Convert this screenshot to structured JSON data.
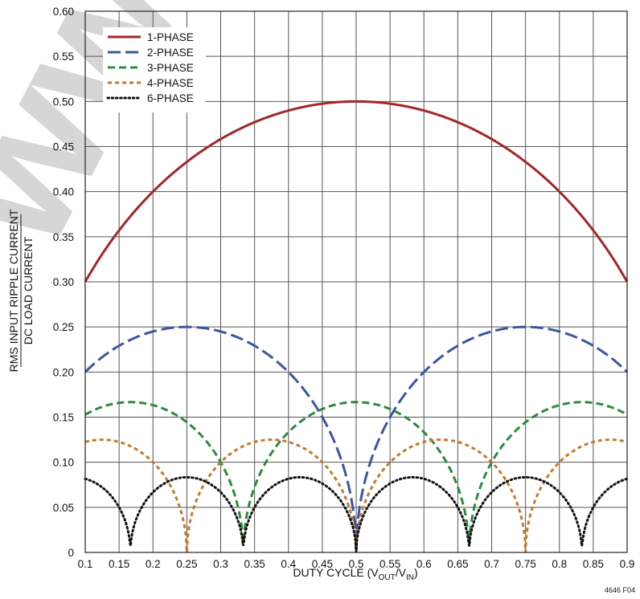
{
  "chart_data": {
    "type": "line",
    "title": "",
    "xlabel_parts": {
      "main": "DUTY CYCLE (V",
      "sub1": "OUT",
      "mid": "/V",
      "sub2": "IN",
      "end": ")"
    },
    "ylabel_numerator": "RMS INPUT RIPPLE CURRENT",
    "ylabel_denominator": "DC LOAD CURRENT",
    "xlim": [
      0.1,
      0.9
    ],
    "ylim": [
      0,
      0.6
    ],
    "x_ticks": [
      "0.1",
      "0.15",
      "0.2",
      "0.25",
      "0.3",
      "0.35",
      "0.4",
      "0.45",
      "0.5",
      "0.55",
      "0.6",
      "0.65",
      "0.7",
      "0.75",
      "0.8",
      "0.85",
      "0.9"
    ],
    "y_ticks": [
      "0",
      "0.05",
      "0.10",
      "0.15",
      "0.20",
      "0.25",
      "0.30",
      "0.35",
      "0.40",
      "0.45",
      "0.50",
      "0.55",
      "0.60"
    ],
    "grid": true,
    "legend_position": "top-left",
    "series": [
      {
        "name": "1-PHASE",
        "phases": 1,
        "color": "#a3262a",
        "style": "solid",
        "x": [
          0.1,
          0.2,
          0.3,
          0.4,
          0.5,
          0.6,
          0.7,
          0.8,
          0.9
        ],
        "y": [
          0.3,
          0.4,
          0.458,
          0.49,
          0.5,
          0.49,
          0.458,
          0.4,
          0.3
        ]
      },
      {
        "name": "2-PHASE",
        "phases": 2,
        "color": "#3b55a3",
        "style": "long-dash",
        "x": [
          0.1,
          0.2,
          0.25,
          0.3,
          0.4,
          0.5,
          0.6,
          0.7,
          0.75,
          0.8,
          0.9
        ],
        "y": [
          0.2,
          0.245,
          0.25,
          0.245,
          0.2,
          0.0,
          0.2,
          0.245,
          0.25,
          0.245,
          0.2
        ]
      },
      {
        "name": "3-PHASE",
        "phases": 3,
        "color": "#2e8a3e",
        "style": "dash",
        "x": [
          0.1,
          0.1667,
          0.25,
          0.3333,
          0.4167,
          0.5,
          0.5833,
          0.6667,
          0.75,
          0.8333,
          0.9
        ],
        "y": [
          0.152,
          0.167,
          0.144,
          0.0,
          0.144,
          0.167,
          0.144,
          0.0,
          0.144,
          0.167,
          0.152
        ]
      },
      {
        "name": "4-PHASE",
        "phases": 4,
        "color": "#c47a2c",
        "style": "short-dash",
        "x": [
          0.1,
          0.125,
          0.25,
          0.375,
          0.5,
          0.625,
          0.75,
          0.875,
          0.9
        ],
        "y": [
          0.122,
          0.125,
          0.0,
          0.125,
          0.0,
          0.125,
          0.0,
          0.125,
          0.122
        ]
      },
      {
        "name": "6-PHASE",
        "phases": 6,
        "color": "#111111",
        "style": "dot",
        "x": [
          0.1,
          0.1667,
          0.25,
          0.3333,
          0.4167,
          0.5,
          0.5833,
          0.6667,
          0.75,
          0.8333,
          0.9
        ],
        "y": [
          0.08,
          0.0,
          0.083,
          0.0,
          0.083,
          0.0,
          0.083,
          0.0,
          0.083,
          0.0,
          0.08
        ]
      }
    ]
  },
  "figure_id": "4646 F04",
  "watermark_text": "www.ic"
}
